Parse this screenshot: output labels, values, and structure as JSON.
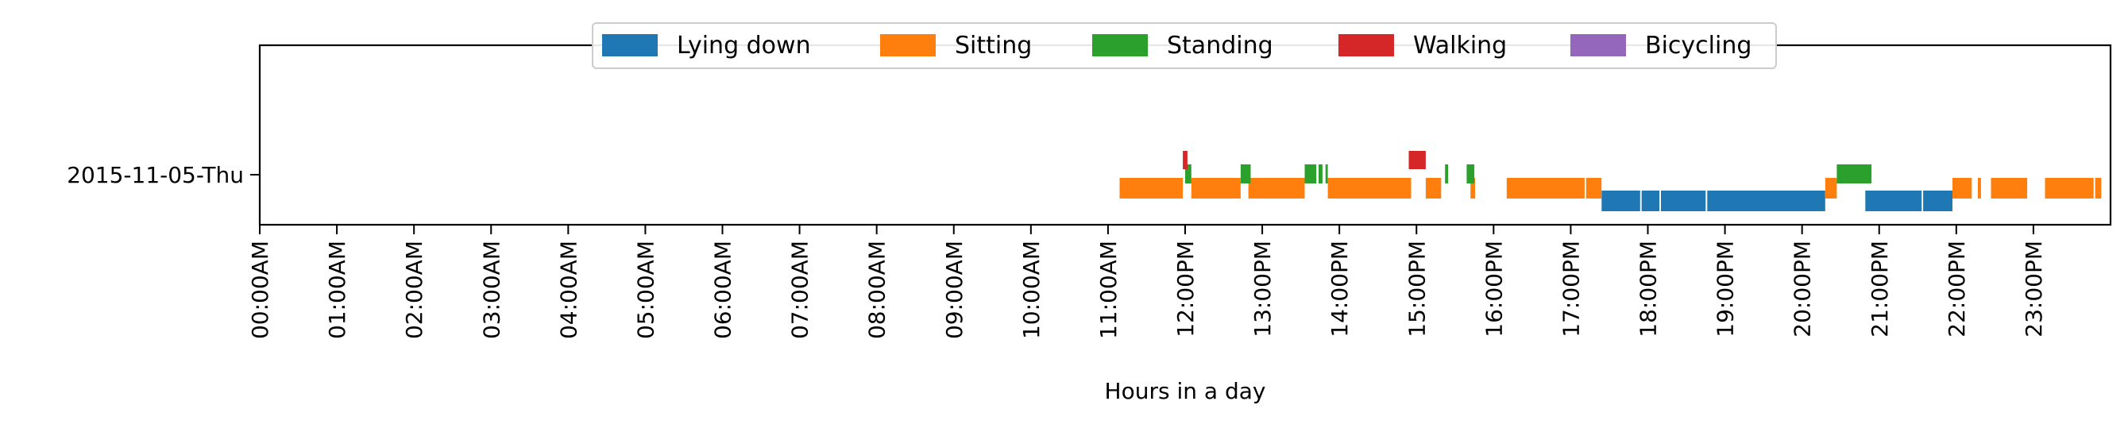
{
  "chart_data": {
    "type": "timeline",
    "title": "",
    "xlabel": "Hours in a day",
    "ylabel": "",
    "xlim": [
      0,
      24
    ],
    "grid": false,
    "legend_placement": "top-center",
    "categories": [
      "2015-11-05-Thu"
    ],
    "x_tick_labels": [
      "00:00AM",
      "01:00AM",
      "02:00AM",
      "03:00AM",
      "04:00AM",
      "05:00AM",
      "06:00AM",
      "07:00AM",
      "08:00AM",
      "09:00AM",
      "10:00AM",
      "11:00AM",
      "12:00PM",
      "13:00PM",
      "14:00PM",
      "15:00PM",
      "16:00PM",
      "17:00PM",
      "18:00PM",
      "19:00PM",
      "20:00PM",
      "21:00PM",
      "22:00PM",
      "23:00PM"
    ],
    "series": [
      {
        "name": "Lying down",
        "color": "#1f77b4",
        "segments": [
          [
            17.4,
            17.9
          ],
          [
            17.92,
            18.15
          ],
          [
            18.17,
            18.75
          ],
          [
            18.77,
            20.3
          ],
          [
            20.82,
            21.55
          ],
          [
            21.57,
            21.95
          ]
        ]
      },
      {
        "name": "Sitting",
        "color": "#ff7f0e",
        "segments": [
          [
            11.15,
            11.97
          ],
          [
            12.08,
            12.72
          ],
          [
            12.82,
            13.55
          ],
          [
            13.85,
            14.93
          ],
          [
            15.12,
            15.32
          ],
          [
            15.7,
            15.76
          ],
          [
            16.17,
            17.18
          ],
          [
            17.2,
            17.4
          ],
          [
            20.3,
            20.45
          ],
          [
            21.95,
            22.2
          ],
          [
            22.28,
            22.32
          ],
          [
            22.45,
            22.92
          ],
          [
            23.15,
            23.78
          ],
          [
            23.8,
            23.88
          ]
        ]
      },
      {
        "name": "Standing",
        "color": "#2ca02c",
        "segments": [
          [
            12.0,
            12.08
          ],
          [
            12.72,
            12.85
          ],
          [
            13.55,
            13.7
          ],
          [
            13.73,
            13.78
          ],
          [
            13.82,
            13.85
          ],
          [
            15.37,
            15.41
          ],
          [
            15.65,
            15.75
          ],
          [
            20.45,
            20.9
          ]
        ]
      },
      {
        "name": "Walking",
        "color": "#d62728",
        "segments": [
          [
            11.97,
            12.03
          ],
          [
            14.9,
            15.12
          ]
        ]
      },
      {
        "name": "Bicycling",
        "color": "#9467bd",
        "segments": []
      }
    ]
  }
}
